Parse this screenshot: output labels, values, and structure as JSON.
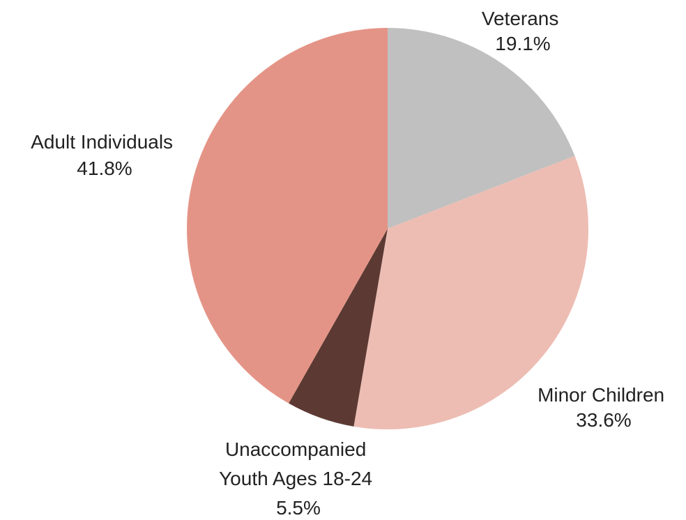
{
  "chart_data": {
    "type": "pie",
    "slices": [
      {
        "label": "Veterans",
        "value": 19.1,
        "value_label": "19.1%",
        "color": "#c0c0c0"
      },
      {
        "label": "Minor Children",
        "value": 33.6,
        "value_label": "33.6%",
        "color": "#edbdb3"
      },
      {
        "label": "Unaccompanied Youth Ages 18-24",
        "value": 5.5,
        "value_label": "5.5%",
        "color": "#5c3a33"
      },
      {
        "label": "Adult Individuals",
        "value": 41.8,
        "value_label": "41.8%",
        "color": "#e49486"
      }
    ],
    "start_angle": "12 o'clock",
    "direction": "clockwise",
    "legend": "none"
  }
}
